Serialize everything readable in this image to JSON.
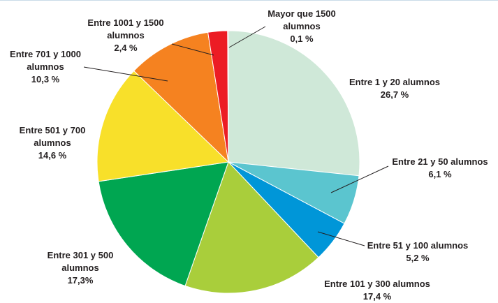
{
  "chart_data": {
    "type": "pie",
    "categories": [
      "Entre 1 y 20 alumnos",
      "Entre 21 y 50 alumnos",
      "Entre 51 y 100 alumnos",
      "Entre 101 y 300 alumnos",
      "Entre 301 y 500 alumnos",
      "Entre 501 y 700 alumnos",
      "Entre 701 y 1000 alumnos",
      "Entre 1001 y 1500 alumnos",
      "Mayor que 1500 alumnos"
    ],
    "values": [
      26.7,
      6.1,
      5.2,
      17.4,
      17.3,
      14.6,
      10.3,
      2.4,
      0.1
    ],
    "value_labels": [
      "26,7 %",
      "6,1 %",
      "5,2 %",
      "17,4 %",
      "17,3%",
      "14,6 %",
      "10,3 %",
      "2,4 %",
      "0,1 %"
    ],
    "colors": [
      "#cfe8d8",
      "#5bc5cf",
      "#0096d8",
      "#a9ce3b",
      "#00a651",
      "#f8e02a",
      "#f58220",
      "#ec1c24",
      "#b0101a"
    ]
  }
}
